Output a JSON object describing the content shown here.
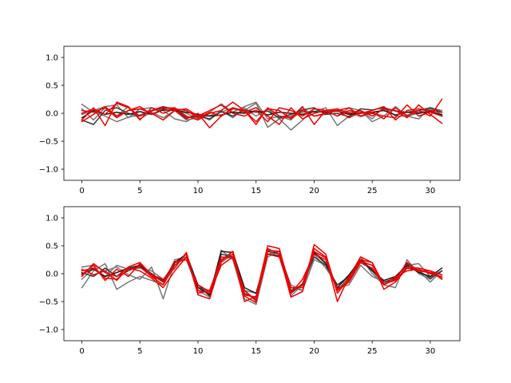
{
  "chart_data": [
    {
      "type": "line",
      "title": "",
      "xlabel": "",
      "ylabel": "",
      "xlim": [
        -1.55,
        32.55
      ],
      "ylim": [
        -1.2,
        1.2
      ],
      "xticks": [
        0,
        5,
        10,
        15,
        20,
        25,
        30
      ],
      "yticks": [
        -1.0,
        -0.5,
        0.0,
        0.5,
        1.0
      ],
      "xtick_labels": [
        "0",
        "5",
        "10",
        "15",
        "20",
        "25",
        "30"
      ],
      "ytick_labels": [
        "−1.0",
        "−0.5",
        "0.0",
        "0.5",
        "1.0"
      ],
      "grid": false,
      "x": [
        0,
        1,
        2,
        3,
        4,
        5,
        6,
        7,
        8,
        9,
        10,
        11,
        12,
        13,
        14,
        15,
        16,
        17,
        18,
        19,
        20,
        21,
        22,
        23,
        24,
        25,
        26,
        27,
        28,
        29,
        30,
        31
      ],
      "series": [
        {
          "color": "#777777",
          "values": [
            0.16,
            0.02,
            -0.05,
            -0.15,
            -0.07,
            -0.03,
            0.05,
            0.12,
            0.08,
            0.0,
            -0.1,
            0.02,
            0.17,
            0.02,
            0.12,
            0.2,
            -0.1,
            -0.05,
            -0.12,
            0.1,
            -0.05,
            -0.02,
            0.06,
            0.02,
            -0.06,
            0.0,
            0.07,
            0.05,
            -0.03,
            0.02,
            0.08,
            -0.02
          ]
        },
        {
          "color": "#777777",
          "values": [
            0.08,
            -0.12,
            0.1,
            -0.05,
            0.12,
            -0.1,
            0.02,
            -0.08,
            0.05,
            -0.12,
            -0.08,
            -0.04,
            0.02,
            0.1,
            0.05,
            0.18,
            -0.25,
            -0.1,
            -0.05,
            0.02,
            0.03,
            0.1,
            -0.22,
            -0.05,
            0.05,
            -0.15,
            -0.05,
            0.12,
            -0.05,
            -0.1,
            0.1,
            0.05
          ]
        },
        {
          "color": "#777777",
          "values": [
            -0.02,
            0.05,
            0.12,
            0.15,
            -0.08,
            0.08,
            0.1,
            0.05,
            -0.1,
            -0.15,
            -0.03,
            -0.12,
            0.05,
            -0.08,
            0.1,
            -0.05,
            0.08,
            -0.1,
            -0.3,
            -0.12,
            0.08,
            0.05,
            -0.05,
            0.1,
            0.05,
            -0.1,
            0.12,
            -0.05,
            -0.05,
            0.0,
            0.05,
            -0.05
          ]
        },
        {
          "color": "#3a3a3a",
          "values": [
            -0.12,
            -0.2,
            0.05,
            0.1,
            0.0,
            -0.05,
            0.04,
            0.1,
            0.08,
            -0.08,
            -0.05,
            -0.1,
            0.03,
            -0.05,
            0.06,
            0.02,
            0.04,
            -0.08,
            -0.02,
            0.06,
            0.1,
            -0.02,
            0.0,
            -0.06,
            0.08,
            0.06,
            0.1,
            0.04,
            0.02,
            0.05,
            0.1,
            0.02
          ]
        },
        {
          "color": "#1a1a1a",
          "values": [
            -0.08,
            0.05,
            -0.02,
            0.02,
            -0.02,
            0.03,
            -0.02,
            0.06,
            0.05,
            0.02,
            -0.02,
            -0.05,
            -0.03,
            0.02,
            0.0,
            0.05,
            -0.03,
            0.02,
            0.0,
            -0.02,
            0.03,
            0.02,
            0.04,
            -0.02,
            0.0,
            0.02,
            0.05,
            -0.03,
            0.02,
            0.0,
            0.03,
            -0.03
          ]
        },
        {
          "color": "#ee0000",
          "values": [
            0.0,
            0.08,
            -0.02,
            0.18,
            0.1,
            -0.05,
            0.05,
            0.12,
            0.05,
            -0.1,
            0.0,
            -0.26,
            -0.05,
            0.08,
            0.05,
            -0.15,
            0.08,
            0.05,
            -0.1,
            0.05,
            -0.05,
            0.0,
            0.05,
            -0.08,
            0.02,
            0.0,
            -0.05,
            -0.08,
            0.15,
            -0.05,
            0.02,
            -0.05
          ]
        },
        {
          "color": "#ee0000",
          "values": [
            -0.15,
            -0.02,
            0.12,
            -0.05,
            0.05,
            0.12,
            -0.02,
            0.08,
            0.1,
            -0.05,
            -0.12,
            0.0,
            0.05,
            0.2,
            0.05,
            -0.2,
            0.1,
            -0.05,
            -0.08,
            0.12,
            -0.2,
            0.05,
            0.05,
            0.1,
            -0.05,
            0.02,
            -0.1,
            0.1,
            -0.05,
            0.05,
            -0.05,
            0.25
          ]
        },
        {
          "color": "#ee0000",
          "values": [
            -0.12,
            0.1,
            -0.22,
            0.2,
            0.12,
            -0.12,
            0.1,
            0.0,
            0.08,
            0.05,
            -0.08,
            0.02,
            -0.05,
            0.1,
            0.02,
            0.1,
            -0.05,
            -0.2,
            0.1,
            -0.1,
            0.0,
            0.05,
            0.08,
            0.0,
            0.05,
            -0.05,
            0.08,
            0.05,
            -0.08,
            0.15,
            -0.02,
            -0.18
          ]
        },
        {
          "color": "#ee0000",
          "values": [
            0.05,
            0.02,
            0.1,
            -0.08,
            0.05,
            0.08,
            0.0,
            -0.12,
            0.05,
            0.08,
            -0.05,
            0.05,
            0.15,
            0.0,
            -0.05,
            0.05,
            -0.15,
            0.1,
            0.05,
            -0.05,
            0.08,
            0.05,
            -0.05,
            0.05,
            0.0,
            0.05,
            0.12,
            -0.12,
            0.05,
            0.08,
            0.05,
            0.02
          ]
        }
      ]
    },
    {
      "type": "line",
      "title": "",
      "xlabel": "",
      "ylabel": "",
      "xlim": [
        -1.55,
        32.55
      ],
      "ylim": [
        -1.2,
        1.2
      ],
      "xticks": [
        0,
        5,
        10,
        15,
        20,
        25,
        30
      ],
      "yticks": [
        -1.0,
        -0.5,
        0.0,
        0.5,
        1.0
      ],
      "xtick_labels": [
        "0",
        "5",
        "10",
        "15",
        "20",
        "25",
        "30"
      ],
      "ytick_labels": [
        "−1.0",
        "−0.5",
        "0.0",
        "0.5",
        "1.0"
      ],
      "grid": false,
      "x": [
        0,
        1,
        2,
        3,
        4,
        5,
        6,
        7,
        8,
        9,
        10,
        11,
        12,
        13,
        14,
        15,
        16,
        17,
        18,
        19,
        20,
        21,
        22,
        23,
        24,
        25,
        26,
        27,
        28,
        29,
        30,
        31
      ],
      "series": [
        {
          "color": "#777777",
          "values": [
            0.12,
            0.15,
            0.05,
            0.12,
            -0.02,
            -0.1,
            0.12,
            -0.45,
            0.2,
            0.25,
            -0.3,
            -0.42,
            0.42,
            0.25,
            -0.45,
            -0.55,
            0.3,
            0.4,
            -0.4,
            -0.2,
            0.35,
            0.1,
            -0.2,
            -0.1,
            0.3,
            0.0,
            -0.2,
            -0.25,
            0.25,
            0.0,
            -0.1,
            0.05
          ]
        },
        {
          "color": "#777777",
          "values": [
            -0.25,
            0.05,
            0.18,
            -0.28,
            -0.15,
            -0.05,
            -0.12,
            -0.2,
            0.25,
            0.3,
            -0.2,
            -0.35,
            0.2,
            0.35,
            -0.3,
            -0.35,
            0.4,
            0.35,
            -0.2,
            -0.3,
            0.25,
            0.15,
            -0.25,
            -0.2,
            0.15,
            -0.05,
            -0.15,
            -0.1,
            0.2,
            0.05,
            -0.15,
            0.05
          ]
        },
        {
          "color": "#777777",
          "values": [
            -0.1,
            0.1,
            -0.05,
            0.15,
            0.08,
            0.1,
            0.05,
            -0.1,
            0.15,
            0.3,
            -0.25,
            -0.3,
            0.25,
            0.4,
            -0.3,
            -0.5,
            0.35,
            0.4,
            -0.25,
            -0.3,
            0.4,
            0.2,
            -0.3,
            -0.05,
            0.3,
            0.05,
            -0.2,
            -0.05,
            0.15,
            0.18,
            -0.05,
            0.05
          ]
        },
        {
          "color": "#3a3a3a",
          "values": [
            0.02,
            -0.05,
            0.1,
            -0.05,
            0.05,
            0.15,
            -0.05,
            -0.12,
            0.2,
            0.35,
            -0.2,
            -0.4,
            0.35,
            0.3,
            -0.35,
            -0.45,
            0.4,
            0.35,
            -0.3,
            -0.2,
            0.3,
            0.15,
            -0.2,
            -0.05,
            0.2,
            0.08,
            -0.15,
            -0.08,
            0.18,
            0.05,
            -0.08,
            0.05
          ]
        },
        {
          "color": "#1a1a1a",
          "values": [
            0.0,
            0.08,
            -0.05,
            0.02,
            0.1,
            0.15,
            0.0,
            -0.15,
            0.2,
            0.35,
            -0.25,
            -0.38,
            0.4,
            0.38,
            -0.25,
            -0.35,
            0.35,
            0.32,
            -0.35,
            -0.18,
            0.38,
            0.18,
            -0.25,
            -0.02,
            0.25,
            0.05,
            -0.12,
            -0.05,
            0.15,
            0.02,
            -0.05,
            0.1
          ]
        },
        {
          "color": "#ee0000",
          "values": [
            -0.05,
            0.18,
            0.02,
            -0.05,
            0.12,
            0.2,
            -0.02,
            -0.1,
            0.1,
            0.38,
            -0.35,
            -0.3,
            0.25,
            0.35,
            -0.5,
            -0.4,
            0.5,
            0.45,
            -0.32,
            -0.2,
            0.45,
            0.3,
            -0.5,
            -0.05,
            0.25,
            0.2,
            -0.28,
            -0.15,
            0.1,
            0.05,
            0.05,
            -0.1
          ]
        },
        {
          "color": "#ee0000",
          "values": [
            0.05,
            0.1,
            -0.08,
            -0.1,
            0.08,
            0.12,
            -0.05,
            -0.2,
            0.15,
            0.35,
            -0.38,
            -0.45,
            0.22,
            0.4,
            -0.4,
            -0.52,
            0.45,
            0.35,
            -0.42,
            -0.32,
            0.52,
            0.35,
            -0.35,
            -0.08,
            0.3,
            0.2,
            -0.2,
            -0.1,
            0.2,
            0.05,
            0.02,
            -0.08
          ]
        },
        {
          "color": "#ee0000",
          "values": [
            0.08,
            -0.02,
            0.05,
            -0.12,
            0.1,
            0.05,
            -0.08,
            -0.25,
            0.05,
            0.3,
            -0.3,
            -0.35,
            0.15,
            0.3,
            -0.3,
            -0.48,
            0.35,
            0.3,
            -0.35,
            -0.1,
            0.35,
            0.25,
            -0.3,
            -0.15,
            0.2,
            0.1,
            -0.2,
            -0.05,
            0.05,
            0.08,
            0.0,
            -0.05
          ]
        },
        {
          "color": "#ee0000",
          "values": [
            -0.02,
            0.15,
            -0.12,
            0.08,
            -0.05,
            0.18,
            -0.02,
            -0.15,
            0.22,
            0.25,
            -0.2,
            -0.32,
            0.3,
            0.28,
            -0.38,
            -0.42,
            0.42,
            0.4,
            -0.25,
            -0.25,
            0.4,
            0.28,
            -0.28,
            -0.12,
            0.22,
            0.15,
            -0.18,
            -0.12,
            0.12,
            0.1,
            0.05,
            -0.02
          ]
        }
      ]
    }
  ]
}
